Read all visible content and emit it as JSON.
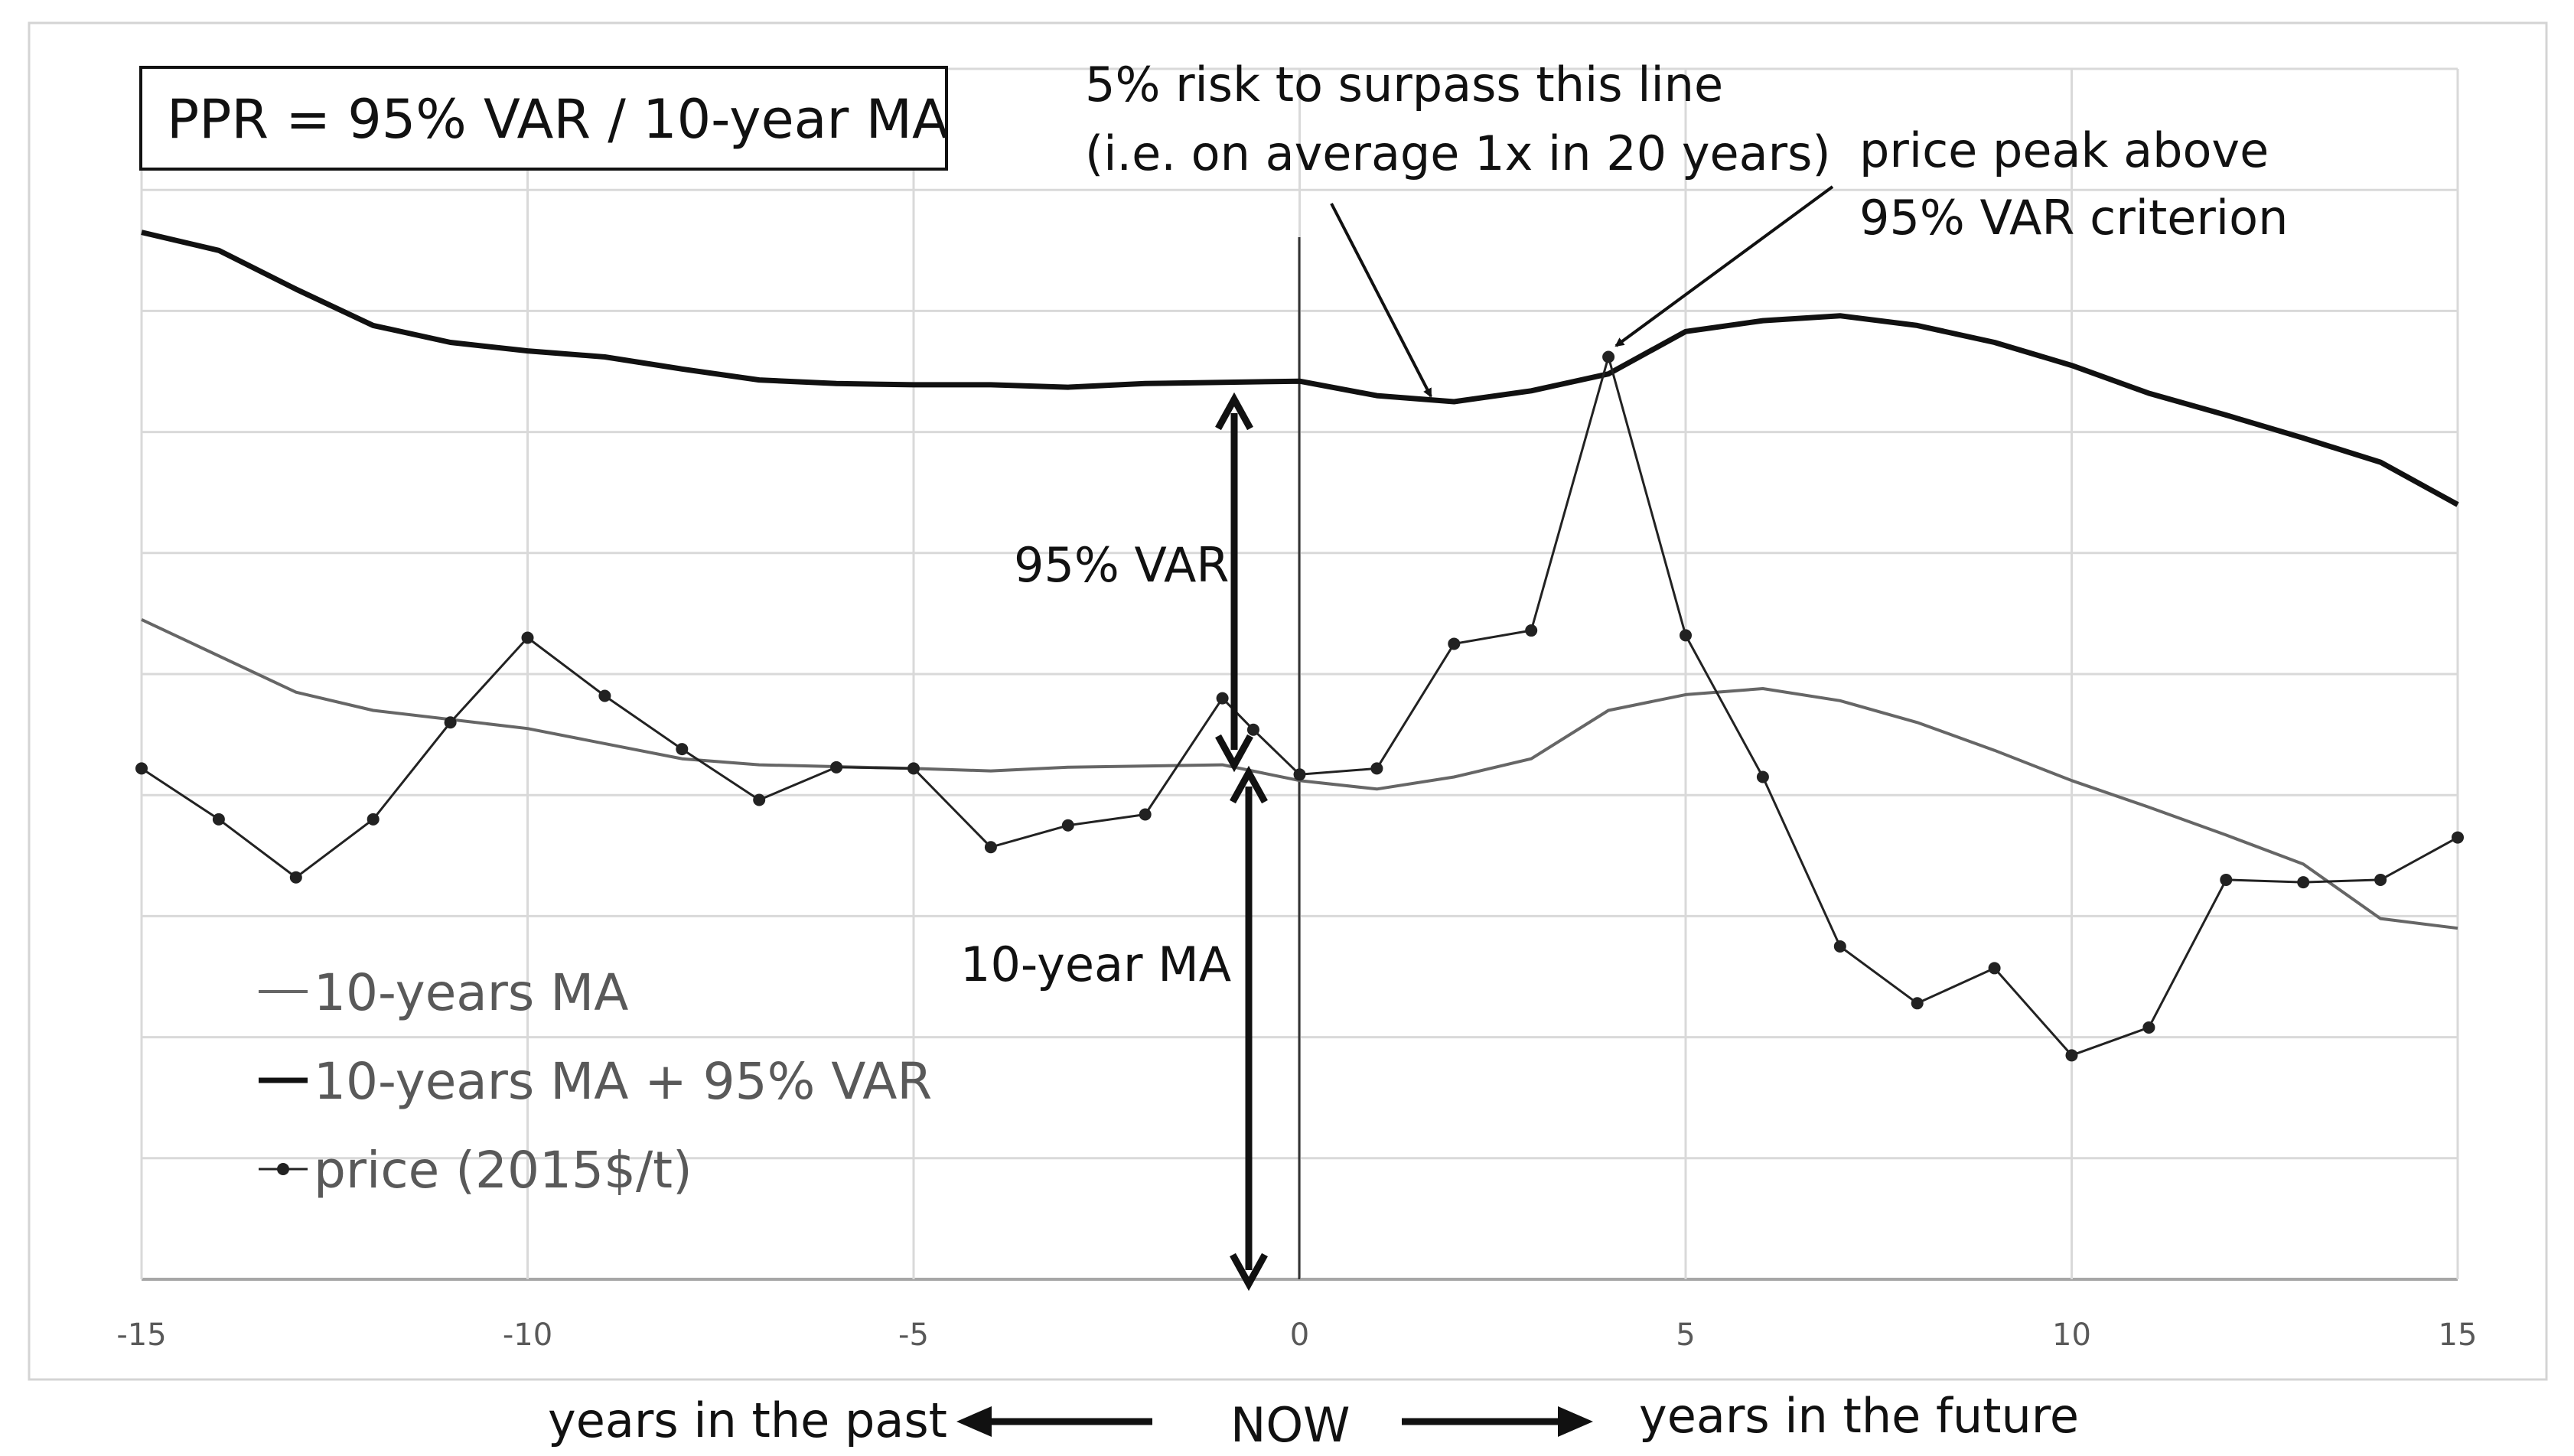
{
  "chart_data": {
    "type": "line",
    "title": "PPR = 95% VAR / 10-year MA",
    "xlabel": "",
    "ylabel": "",
    "xlim": [
      -15,
      15
    ],
    "ylim": [
      0,
      10
    ],
    "xticks": [
      -15,
      -10,
      -5,
      0,
      5,
      10,
      15
    ],
    "grid": true,
    "legend_position": "lower-left",
    "series": [
      {
        "name": "10-years MA",
        "style": "thin-gray",
        "color": "#666666",
        "x": [
          -15,
          -13,
          -12,
          -10,
          -8,
          -7,
          -5,
          -4,
          -3,
          -1,
          0,
          1,
          2,
          3,
          4,
          5,
          6,
          7,
          8,
          9,
          10,
          11,
          12,
          13,
          14,
          15
        ],
        "y": [
          5.45,
          4.85,
          4.7,
          4.55,
          4.3,
          4.25,
          4.22,
          4.2,
          4.23,
          4.25,
          4.12,
          4.05,
          4.15,
          4.3,
          4.7,
          4.83,
          4.88,
          4.78,
          4.6,
          4.37,
          4.12,
          3.9,
          3.67,
          3.43,
          2.98,
          2.9
        ]
      },
      {
        "name": "10-years MA + 95% VAR",
        "style": "thick-black",
        "color": "#111111",
        "x": [
          -15,
          -14,
          -13,
          -12,
          -11,
          -10,
          -9,
          -8,
          -7,
          -6,
          -5,
          -4,
          -3,
          -2,
          -1,
          0,
          1,
          2,
          3,
          4,
          5,
          6,
          7,
          8,
          9,
          10,
          11,
          12,
          13,
          14,
          15
        ],
        "y": [
          8.65,
          8.5,
          8.18,
          7.88,
          7.74,
          7.67,
          7.62,
          7.52,
          7.43,
          7.4,
          7.39,
          7.39,
          7.37,
          7.4,
          7.41,
          7.42,
          7.3,
          7.25,
          7.34,
          7.48,
          7.83,
          7.92,
          7.96,
          7.88,
          7.74,
          7.55,
          7.32,
          7.14,
          6.95,
          6.75,
          6.4
        ]
      },
      {
        "name": "price (2015$/t)",
        "style": "thin-black-markers",
        "color": "#222222",
        "x": [
          -15,
          -14,
          -13,
          -12,
          -11,
          -10,
          -9,
          -8,
          -7,
          -6,
          -5,
          -4,
          -3,
          -2,
          -1,
          -0.6,
          0,
          1,
          2,
          3,
          4,
          5,
          6,
          7,
          8,
          9,
          10,
          11,
          12,
          13,
          14,
          15
        ],
        "y": [
          4.22,
          3.8,
          3.32,
          3.8,
          4.6,
          5.3,
          4.82,
          4.38,
          3.96,
          4.23,
          4.22,
          3.57,
          3.75,
          3.84,
          4.8,
          4.54,
          4.17,
          4.22,
          5.25,
          5.36,
          7.62,
          5.32,
          4.15,
          2.75,
          2.28,
          2.57,
          1.85,
          2.08,
          3.3,
          3.28,
          3.3,
          3.65
        ]
      }
    ],
    "annotations": {
      "risk_line_1": "5% risk to surpass this line",
      "risk_line_2": "(i.e. on average 1x in 20 years)",
      "peak_line_1": "price peak above",
      "peak_line_2": "95% VAR criterion",
      "var_label": "95% VAR",
      "ma_label": "10-year MA"
    },
    "bottom": {
      "past": "years in the past",
      "now": "NOW",
      "future": "years in the future"
    }
  }
}
